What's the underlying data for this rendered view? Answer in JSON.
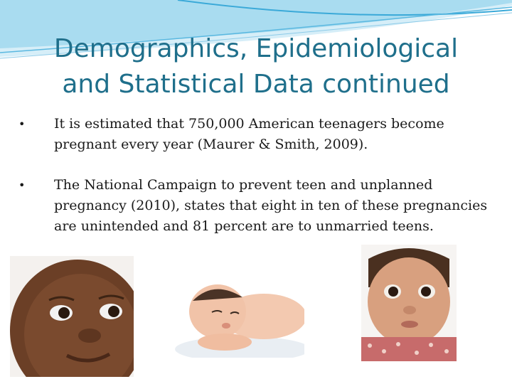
{
  "slide": {
    "title_line1": "Demographics, Epidemiological",
    "title_line2": "and Statistical Data continued",
    "bullets": [
      "It is estimated that 750,000 American teenagers become pregnant every year (Maurer & Smith, 2009).",
      "The National Campaign to prevent teen and unplanned pregnancy (2010), states that eight in ten of these pregnancies are unintended and 81 percent are to unmarried teens."
    ],
    "bullet_glyph": "•"
  },
  "colors": {
    "title": "#1f6f8b",
    "wave": "#3aa9d8"
  },
  "images": [
    {
      "name": "baby-face-photo",
      "icon": "baby-portrait"
    },
    {
      "name": "newborn-lying-photo",
      "icon": "newborn-lying"
    },
    {
      "name": "baby-girl-photo",
      "icon": "baby-portrait"
    }
  ]
}
